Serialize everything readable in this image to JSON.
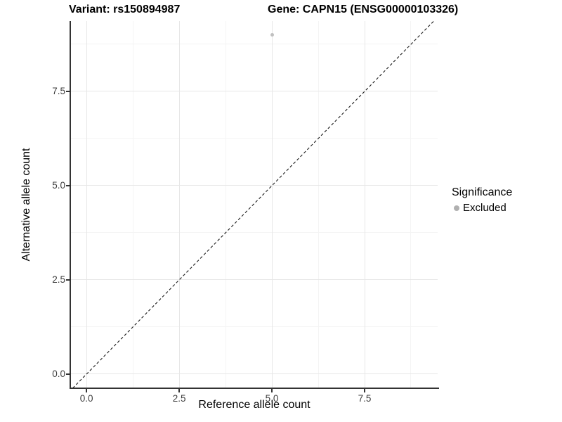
{
  "chart_data": {
    "type": "scatter",
    "title_left": "Variant: rs150894987",
    "title_right": "Gene: CAPN15 (ENSG00000103326)",
    "xlabel": "Reference allele count",
    "ylabel": "Alternative allele count",
    "xlim": [
      -0.42,
      9.47
    ],
    "ylim": [
      -0.375,
      9.365
    ],
    "x_ticks": [
      0.0,
      2.5,
      5.0,
      7.5
    ],
    "x_tick_labels": [
      "0.0",
      "2.5",
      "5.0",
      "7.5"
    ],
    "y_ticks": [
      0.0,
      2.5,
      5.0,
      7.5
    ],
    "y_tick_labels": [
      "0.0",
      "2.5",
      "5.0",
      "7.5"
    ],
    "x_minor_ticks": [
      1.25,
      3.75,
      6.25,
      8.75
    ],
    "y_minor_ticks": [
      1.25,
      3.75,
      6.25,
      8.75
    ],
    "grid": "major+minor",
    "series": [
      {
        "name": "Excluded",
        "color": "#c0c0c0",
        "points": [
          {
            "x": 5,
            "y": 9
          }
        ]
      }
    ],
    "reference_line": {
      "type": "identity y=x",
      "style": "dashed",
      "color": "#1a1a1a",
      "x1": -0.375,
      "y1": -0.375,
      "x2": 9.365,
      "y2": 9.365
    },
    "legend": {
      "title": "Significance",
      "position": "right",
      "entries": [
        {
          "label": "Excluded",
          "color": "#b0b0b0"
        }
      ]
    }
  }
}
